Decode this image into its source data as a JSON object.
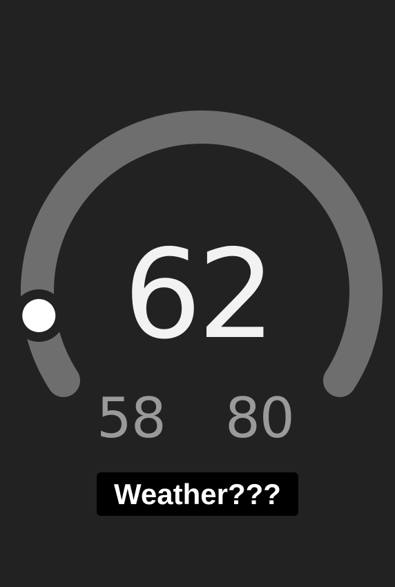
{
  "widget": {
    "current_temp": "62",
    "low_temp": "58",
    "high_temp": "80",
    "gauge_level": 0.1
  },
  "caption": {
    "text": "Weather???"
  },
  "colors": {
    "background": "#222222",
    "arc": "#6e6e6e",
    "indicator": "#ffffff",
    "primary_text": "#f2f2f2",
    "secondary_text": "#9a9a9a",
    "caption_bg": "#000000"
  }
}
